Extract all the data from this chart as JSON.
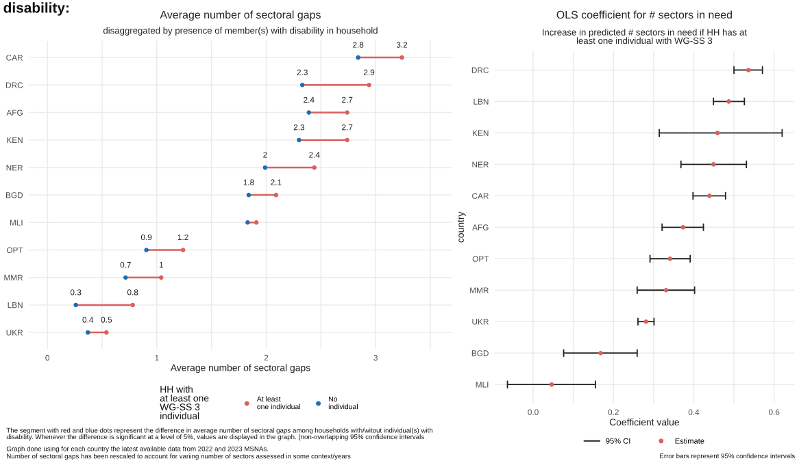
{
  "chart_data": [
    {
      "type": "scatter",
      "orientation": "horizontal",
      "title": "Average number of sectoral gaps",
      "subtitle": "disaggregated by presence of member(s) with disability in household",
      "xlabel": "Average number of sectoral gaps",
      "legend_title": "HH with\nat least one\nWG-SS 3\nindividual",
      "legend": "bottom",
      "grid": true,
      "marker": "circle",
      "categories": [
        "CAR",
        "DRC",
        "AFG",
        "KEN",
        "NER",
        "BGD",
        "MLI",
        "OPT",
        "MMR",
        "LBN",
        "UKR"
      ],
      "xlim": [
        -0.17,
        3.7
      ],
      "xticks": [
        0,
        {
          "value": 0.5,
          "label": null
        },
        1,
        {
          "value": 1.5,
          "label": null
        },
        2,
        {
          "value": 2.5,
          "label": null
        },
        3,
        {
          "value": 3.5,
          "label": null
        }
      ],
      "series": [
        {
          "name": "At least\none individual",
          "color": "#d9605f",
          "values": [
            3.24,
            2.94,
            2.74,
            2.74,
            2.44,
            2.09,
            1.91,
            1.24,
            1.04,
            0.78,
            0.54
          ],
          "value_labels": [
            "3.2",
            "2.9",
            "2.7",
            "2.7",
            "2.4",
            "2.1",
            null,
            "1.2",
            "1",
            "0.8",
            "0.5"
          ]
        },
        {
          "name": "No\nindividual",
          "color": "#1b6db3",
          "values": [
            2.84,
            2.33,
            2.39,
            2.3,
            1.99,
            1.84,
            1.83,
            0.905,
            0.715,
            0.26,
            0.37
          ],
          "value_labels": [
            "2.8",
            "2.3",
            "2.4",
            "2.3",
            "2",
            "1.8",
            null,
            "0.9",
            "0.7",
            "0.3",
            "0.4"
          ]
        }
      ],
      "annotations": [
        "disability:",
        "The segment with red and blue dots represent the difference in average number of sectoral gaps among households with/witout individual(s) with\ndisability. Whenever the difference is significant at a level of 5%, values are displayed in the graph. (non-overlapping 95% confidence intervals",
        "Graph done using for each country the latest available data from 2022 and 2023 MSNAs.",
        "Number of sectoral gaps has been rescaled to account for variing number of sectors assessed in some context/years"
      ]
    },
    {
      "type": "scatter",
      "orientation": "horizontal",
      "title": "OLS coefficient for # sectors in need",
      "subtitle": "Increase in predicted # sectors in need if HH has at\nleast one individual with WG-SS 3",
      "xlabel": "Coefficient value",
      "ylabel": "country",
      "legend": "bottom",
      "grid": true,
      "marker": "circle",
      "categories": [
        "DRC",
        "LBN",
        "KEN",
        "NER",
        "CAR",
        "AFG",
        "OPT",
        "MMR",
        "UKR",
        "BGD",
        "MLI"
      ],
      "xlim": [
        -0.096,
        0.65
      ],
      "xticks": [
        {
          "value": 0.0,
          "label": "0.0"
        },
        {
          "value": 0.1,
          "label": null
        },
        {
          "value": 0.2,
          "label": "0.2"
        },
        {
          "value": 0.3,
          "label": null
        },
        {
          "value": 0.4,
          "label": "0.4"
        },
        {
          "value": 0.5,
          "label": null
        },
        {
          "value": 0.6,
          "label": "0.6"
        }
      ],
      "series": [
        {
          "name": "Estimate",
          "color": "#d9605f",
          "values": [
            0.536,
            0.487,
            0.459,
            0.449,
            0.439,
            0.373,
            0.341,
            0.331,
            0.281,
            0.168,
            0.046
          ],
          "errors": [
            [
              0.5,
              0.571
            ],
            [
              0.449,
              0.526
            ],
            [
              0.314,
              0.62
            ],
            [
              0.368,
              0.531
            ],
            [
              0.398,
              0.479
            ],
            [
              0.321,
              0.424
            ],
            [
              0.291,
              0.391
            ],
            [
              0.259,
              0.402
            ],
            [
              0.261,
              0.301
            ],
            [
              0.076,
              0.259
            ],
            [
              -0.064,
              0.155
            ]
          ]
        }
      ],
      "annotations": [
        "95% CI",
        "Error bars represent 95% confidence intervals"
      ]
    }
  ]
}
